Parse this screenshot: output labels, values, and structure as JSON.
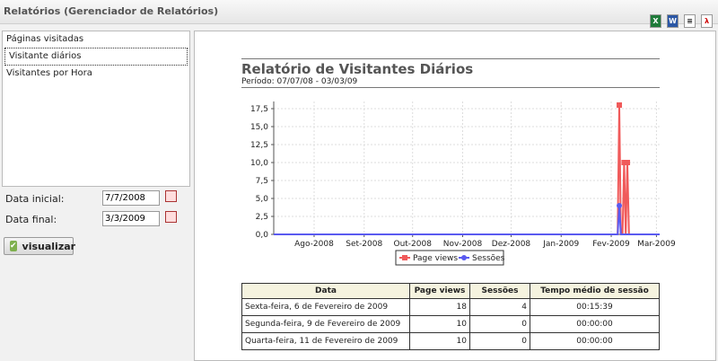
{
  "window": {
    "title": "Relatórios (Gerenciador de Relatórios)"
  },
  "export_icons": [
    "excel-icon",
    "word-icon",
    "csv-icon",
    "pdf-icon"
  ],
  "report_list": [
    {
      "label": "Páginas visitadas"
    },
    {
      "label": "Visitante diários"
    },
    {
      "label": "Visitantes por Hora"
    }
  ],
  "form": {
    "start_label": "Data inicial:",
    "start_value": "7/7/2008",
    "end_label": "Data final:",
    "end_value": "3/3/2009",
    "submit_label": "visualizar"
  },
  "report": {
    "title": "Relatório de Visitantes Diários",
    "period": "Período: 07/07/08 - 03/03/09"
  },
  "chart_data": {
    "type": "line",
    "x_ticks": [
      "Ago-2008",
      "Set-2008",
      "Out-2008",
      "Nov-2008",
      "Dez-2008",
      "Jan-2009",
      "Fev-2009",
      "Mar-2009"
    ],
    "y_ticks": [
      "0,0",
      "2,5",
      "5,0",
      "7,5",
      "10,0",
      "12,5",
      "15,0",
      "17,5"
    ],
    "ylim": [
      0,
      18.5
    ],
    "xlim": [
      "2008-07-07",
      "2009-03-03"
    ],
    "grid": true,
    "legend_position": "bottom",
    "series": [
      {
        "name": "Page views",
        "color": "#f05a5a",
        "marker": "square",
        "points": [
          [
            "2008-07-07",
            0
          ],
          [
            "2009-02-05",
            0
          ],
          [
            "2009-02-06",
            18
          ],
          [
            "2009-02-07",
            0
          ],
          [
            "2009-02-08",
            0
          ],
          [
            "2009-02-09",
            10
          ],
          [
            "2009-02-10",
            0
          ],
          [
            "2009-02-11",
            10
          ],
          [
            "2009-02-12",
            0
          ],
          [
            "2009-03-03",
            0
          ]
        ]
      },
      {
        "name": "Sessões",
        "color": "#5a5af0",
        "marker": "circle",
        "points": [
          [
            "2008-07-07",
            0
          ],
          [
            "2009-02-05",
            0
          ],
          [
            "2009-02-06",
            4
          ],
          [
            "2009-02-07",
            0
          ],
          [
            "2009-03-03",
            0
          ]
        ]
      }
    ]
  },
  "table": {
    "headers": [
      "Data",
      "Page views",
      "Sessões",
      "Tempo médio de sessão"
    ],
    "rows": [
      [
        "Sexta-feira, 6 de Fevereiro de 2009",
        "18",
        "4",
        "00:15:39"
      ],
      [
        "Segunda-feira, 9 de Fevereiro de 2009",
        "10",
        "0",
        "00:00:00"
      ],
      [
        "Quarta-feira, 11 de Fevereiro de 2009",
        "10",
        "0",
        "00:00:00"
      ]
    ]
  }
}
